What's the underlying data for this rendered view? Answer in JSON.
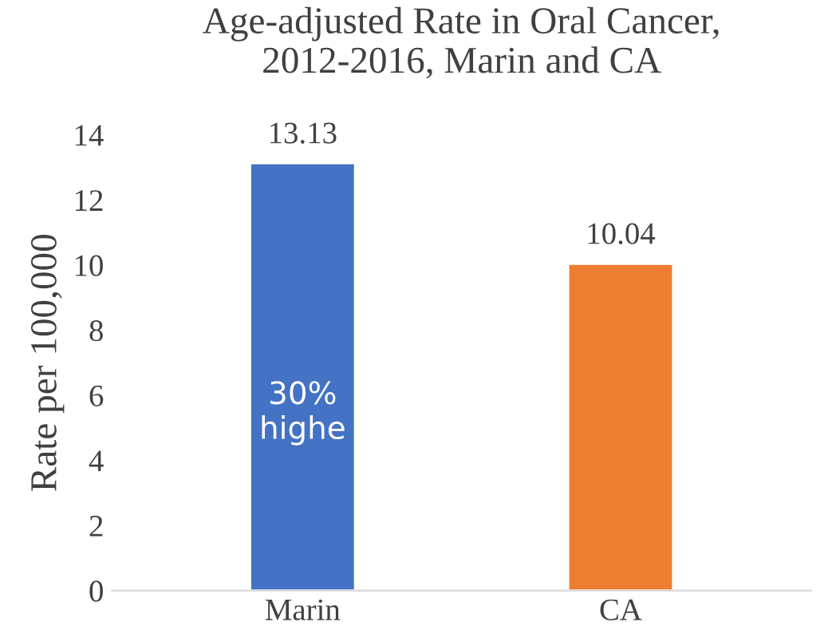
{
  "chart_data": {
    "type": "bar",
    "title": "Age-adjusted Rate in Oral Cancer,\n2012-2016, Marin and CA",
    "ylabel": "Rate per 100,000",
    "categories": [
      "Marin",
      "CA"
    ],
    "values": [
      13.13,
      10.04
    ],
    "colors": [
      "#4472c4",
      "#ed7d31"
    ],
    "ylim": [
      0,
      14
    ],
    "yticks": [
      0,
      2,
      4,
      6,
      8,
      10,
      12,
      14
    ],
    "grid": false,
    "data_labels": true,
    "annotations": [
      "30%\nhighe"
    ]
  }
}
